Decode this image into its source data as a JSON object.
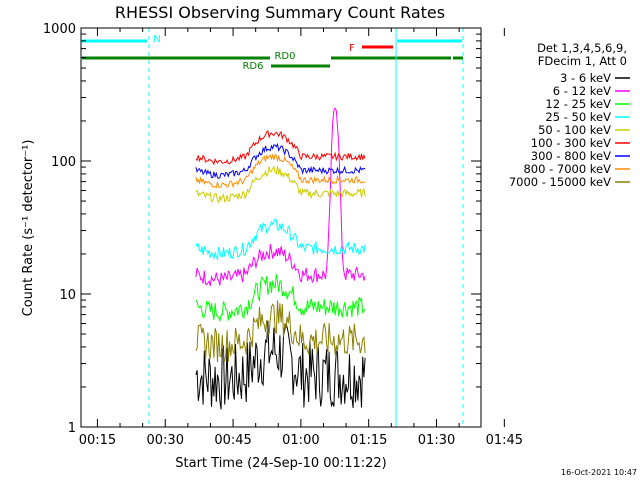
{
  "chart_data": {
    "type": "line",
    "title": "RHESSI Observing Summary Count Rates",
    "xlabel": "Start Time (24-Sep-10 00:11:22)",
    "ylabel": "Count Rate (s⁻¹ detector⁻¹)",
    "y_scale": "log",
    "ylim": [
      1,
      1000
    ],
    "xlim_minutes_after_start": [
      0,
      37.6
    ],
    "x_start_time": "00:11:22",
    "x_tick_labels": [
      "00:15",
      "00:30",
      "00:45",
      "01:00",
      "01:15",
      "01:30",
      "01:45"
    ],
    "y_tick_labels": [
      "1",
      "10",
      "100",
      "1000"
    ],
    "y_ticks": [
      1,
      10,
      100,
      1000
    ],
    "grid": false,
    "legend_placement": "right",
    "legend_header": [
      "Det 1,3,4,5,6,9,",
      "FDecim 1, Att 0"
    ],
    "series": [
      {
        "name": "3 - 6 keV",
        "color": "#000000",
        "base": 2.5,
        "jitter": 1.8
      },
      {
        "name": "6 - 12 keV",
        "color": "#ff00ff",
        "base": 14,
        "jitter": 1.15,
        "flare_peak": 280
      },
      {
        "name": "12 - 25 keV",
        "color": "#00ff00",
        "base": 8,
        "jitter": 1.2
      },
      {
        "name": "25 - 50 keV",
        "color": "#00ffff",
        "base": 22,
        "jitter": 1.12
      },
      {
        "name": "50 - 100 keV",
        "color": "#cccc00",
        "base": 57,
        "jitter": 1.08
      },
      {
        "name": "100 - 300 keV",
        "color": "#ff0000",
        "base": 108,
        "jitter": 1.06
      },
      {
        "name": "300 - 800 keV",
        "color": "#0000ff",
        "base": 85,
        "jitter": 1.06
      },
      {
        "name": "800 - 7000 keV",
        "color": "#ff8c00",
        "base": 72,
        "jitter": 1.06
      },
      {
        "name": "7000 - 15000 keV",
        "color": "#8b8000",
        "base": 4.5,
        "jitter": 1.35
      }
    ],
    "annotations": {
      "flags": [
        {
          "label": "N",
          "color": "#00ffff"
        },
        {
          "label": "RD0",
          "color": "#008000"
        },
        {
          "label": "RD6",
          "color": "#008000"
        },
        {
          "label": "F",
          "color": "#ff0000"
        }
      ]
    }
  },
  "footer": {
    "timestamp": "16-Oct-2021 10:47"
  }
}
